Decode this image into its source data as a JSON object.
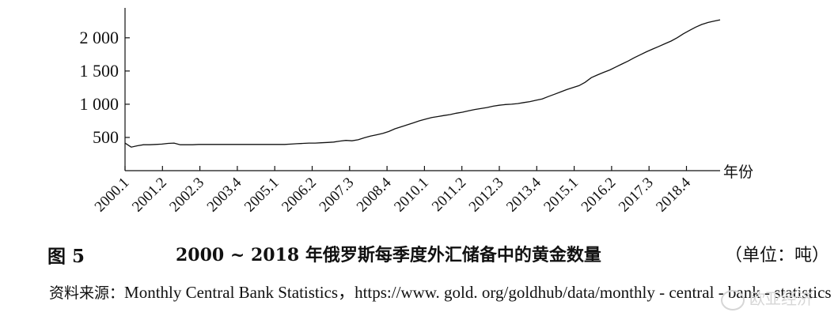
{
  "chart_data": {
    "type": "line",
    "x_unit_label": "年份",
    "ylim": [
      0,
      2450
    ],
    "y_ticks": [
      500,
      1000,
      1500,
      2000
    ],
    "y_tick_labels": [
      "500",
      "1 000",
      "1 500",
      "2 000"
    ],
    "x_tick_labels": [
      "2000.1",
      "2001.2",
      "2002.3",
      "2003.4",
      "2005.1",
      "2006.2",
      "2007.3",
      "2008.4",
      "2010.1",
      "2011.2",
      "2012.3",
      "2013.4",
      "2015.1",
      "2016.2",
      "2017.3",
      "2018.4"
    ],
    "grid": false,
    "series": [
      {
        "values": [
          415,
          355,
          375,
          390,
          390,
          395,
          400,
          410,
          415,
          390,
          390,
          390,
          395,
          395,
          395,
          395,
          395,
          395,
          395,
          395,
          395,
          395,
          395,
          395,
          395,
          395,
          395,
          400,
          405,
          410,
          415,
          415,
          420,
          425,
          430,
          445,
          455,
          450,
          465,
          495,
          520,
          540,
          560,
          590,
          630,
          660,
          690,
          720,
          750,
          775,
          800,
          815,
          830,
          845,
          865,
          880,
          900,
          920,
          935,
          950,
          970,
          985,
          995,
          1000,
          1010,
          1025,
          1040,
          1060,
          1080,
          1115,
          1150,
          1185,
          1220,
          1250,
          1280,
          1330,
          1400,
          1440,
          1480,
          1515,
          1560,
          1605,
          1650,
          1700,
          1745,
          1790,
          1830,
          1870,
          1910,
          1950,
          2000,
          2060,
          2110,
          2160,
          2200,
          2230,
          2250,
          2270
        ]
      }
    ]
  },
  "caption": {
    "label": "图 5",
    "title": "2000 ~ 2018 年俄罗斯每季度外汇储备中的黄金数量",
    "unit": "（单位：吨）"
  },
  "source": {
    "label": "资料来源：",
    "text": "Monthly Central Bank Statistics，https://www. gold. org/goldhub/data/monthly - central - bank - statistics"
  },
  "watermark": {
    "text": "欧亚经济"
  }
}
